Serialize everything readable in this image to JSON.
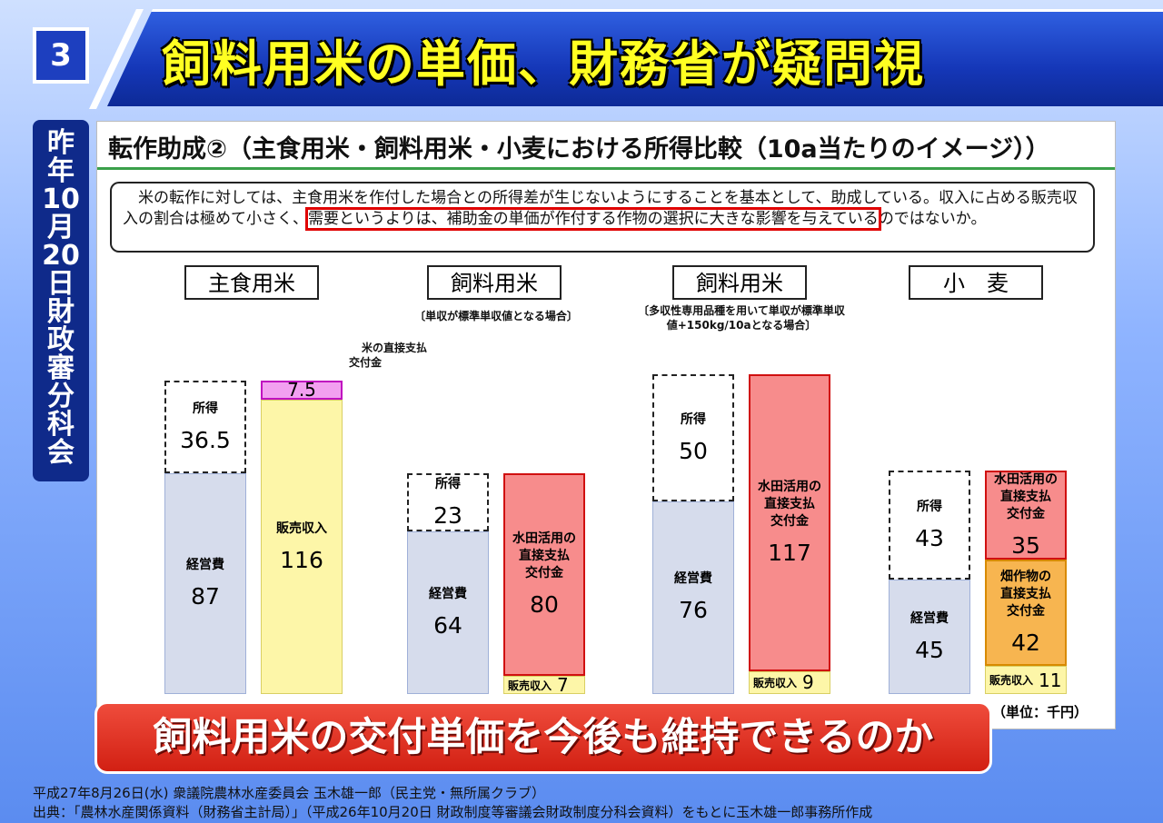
{
  "slide": {
    "number": "3",
    "title": "飼料用米の単価、財務省が疑問視",
    "side_label": [
      "昨",
      "年",
      "10",
      "月",
      "20",
      "日",
      "財",
      "政",
      "審",
      "分",
      "科",
      "会"
    ],
    "banner": "飼料用米の交付単価を今後も維持できるのか",
    "footer_line1": "平成27年8月26日(水) 衆議院農林水産委員会 玉木雄一郎（民主党・無所属クラブ）",
    "footer_line2": "出典：「農林水産関係資料（財務省主計局）」（平成26年10月20日 財政制度等審議会財政制度分科会資料）をもとに玉木雄一郎事務所作成"
  },
  "panel": {
    "title": "転作助成②（主食用米・飼料用米・小麦における所得比較（10a当たりのイメージ））",
    "desc_before": "　米の転作に対しては、主食用米を作付した場合との所得差が生じないようにすることを基本として、助成している。収入に占める販売収入の割合は極めて小さく、",
    "desc_highlight": "需要というよりは、補助金の単価が作付する作物の選択に大きな影響を与えている",
    "desc_after": "のではないか。",
    "unit": "（単位：千円）"
  },
  "chart_data": {
    "type": "bar",
    "groups": [
      {
        "name": "主食用米",
        "note": "",
        "bars": [
          {
            "segments": [
              {
                "label": "経営費",
                "value": 87
              },
              {
                "label": "所得",
                "value": 36.5
              }
            ]
          },
          {
            "segments": [
              {
                "label": "販売収入",
                "value": 116
              },
              {
                "label": "米の直接支払交付金",
                "value": 7.5
              }
            ]
          }
        ]
      },
      {
        "name": "飼料用米",
        "note": "単収が標準単収値となる場合",
        "bars": [
          {
            "segments": [
              {
                "label": "経営費",
                "value": 64
              },
              {
                "label": "所得",
                "value": 23
              }
            ]
          },
          {
            "segments": [
              {
                "label": "販売収入",
                "value": 7
              },
              {
                "label": "水田活用の直接支払交付金",
                "value": 80
              }
            ]
          }
        ]
      },
      {
        "name": "飼料用米",
        "note": "多収性専用品種を用いて単収が標準単収値+150kg/10aとなる場合",
        "bars": [
          {
            "segments": [
              {
                "label": "経営費",
                "value": 76
              },
              {
                "label": "所得",
                "value": 50
              }
            ]
          },
          {
            "segments": [
              {
                "label": "販売収入",
                "value": 9
              },
              {
                "label": "水田活用の直接支払交付金",
                "value": 117
              }
            ]
          }
        ]
      },
      {
        "name": "小　麦",
        "note": "",
        "bars": [
          {
            "segments": [
              {
                "label": "経営費",
                "value": 45
              },
              {
                "label": "所得",
                "value": 43
              }
            ]
          },
          {
            "segments": [
              {
                "label": "販売収入",
                "value": 11
              },
              {
                "label": "畑作物の直接支払交付金",
                "value": 42
              },
              {
                "label": "水田活用の直接支払交付金",
                "value": 35
              }
            ]
          }
        ]
      }
    ],
    "colors": {
      "cost": "#d6dcec",
      "income": "#ffffff",
      "sales": "#fdf6a8",
      "rice_direct": "#f2a0f0",
      "paddy": "#f78c8c",
      "upland": "#f7b550"
    }
  }
}
